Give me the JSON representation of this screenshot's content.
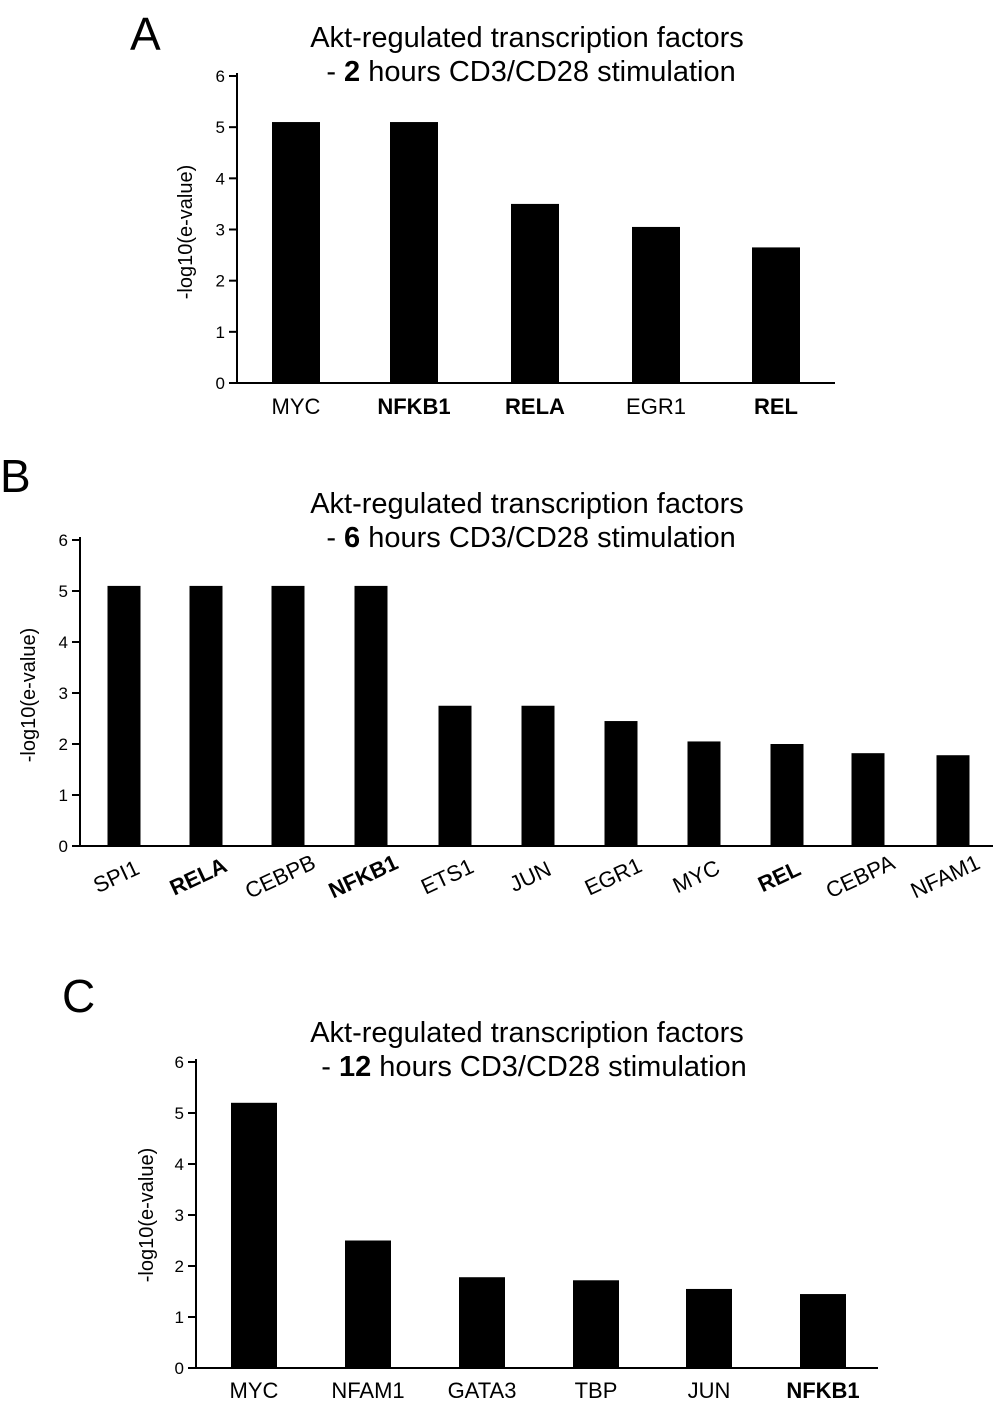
{
  "chart_data": [
    {
      "type": "bar",
      "panel": "A",
      "title_lines": [
        {
          "prefix": "",
          "bold": "",
          "suffix": "Akt-regulated transcription factors"
        },
        {
          "prefix": " - ",
          "bold": "2",
          "suffix": " hours CD3/CD28 stimulation"
        }
      ],
      "ylabel": "-log10(e-value)",
      "xlabel": "",
      "ylim": [
        0,
        6
      ],
      "yticks": [
        "0",
        "1",
        "2",
        "3",
        "4",
        "5",
        "6"
      ],
      "categories": [
        "MYC",
        "NFKB1",
        "RELA",
        "EGR1",
        "REL"
      ],
      "bold_categories": [
        "NFKB1",
        "RELA",
        "REL"
      ],
      "values": [
        5.1,
        5.1,
        3.5,
        3.05,
        2.65
      ],
      "color": "#000000",
      "rotated_labels": false
    },
    {
      "type": "bar",
      "panel": "B",
      "title_lines": [
        {
          "prefix": "",
          "bold": "",
          "suffix": "Akt-regulated transcription factors"
        },
        {
          "prefix": " - ",
          "bold": "6",
          "suffix": " hours CD3/CD28 stimulation"
        }
      ],
      "ylabel": "-log10(e-value)",
      "xlabel": "",
      "ylim": [
        0,
        6
      ],
      "yticks": [
        "0",
        "1",
        "2",
        "3",
        "4",
        "5",
        "6"
      ],
      "categories": [
        "SPI1",
        "RELA",
        "CEBPB",
        "NFKB1",
        "ETS1",
        "JUN",
        "EGR1",
        "MYC",
        "REL",
        "CEBPA",
        "NFAM1"
      ],
      "bold_categories": [
        "RELA",
        "NFKB1",
        "REL"
      ],
      "values": [
        5.1,
        5.1,
        5.1,
        5.1,
        2.75,
        2.75,
        2.45,
        2.05,
        2.0,
        1.82,
        1.78
      ],
      "color": "#000000",
      "rotated_labels": true
    },
    {
      "type": "bar",
      "panel": "C",
      "title_lines": [
        {
          "prefix": "",
          "bold": "",
          "suffix": "Akt-regulated transcription factors"
        },
        {
          "prefix": " - ",
          "bold": "12",
          "suffix": " hours CD3/CD28 stimulation"
        }
      ],
      "ylabel": "-log10(e-value)",
      "xlabel": "",
      "ylim": [
        0,
        6
      ],
      "yticks": [
        "0",
        "1",
        "2",
        "3",
        "4",
        "5",
        "6"
      ],
      "categories": [
        "MYC",
        "NFAM1",
        "GATA3",
        "TBP",
        "JUN",
        "NFKB1"
      ],
      "bold_categories": [
        "NFKB1"
      ],
      "values": [
        5.2,
        2.5,
        1.78,
        1.72,
        1.55,
        1.45
      ],
      "color": "#000000",
      "rotated_labels": false
    }
  ]
}
